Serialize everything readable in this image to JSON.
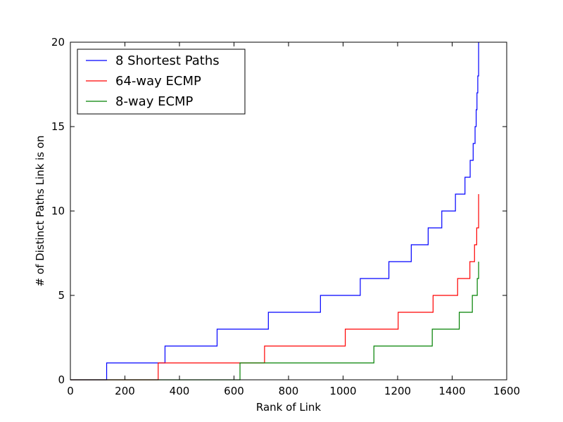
{
  "chart_data": {
    "type": "line",
    "title": "",
    "xlabel": "Rank of Link",
    "ylabel": "# of Distinct Paths Link is on",
    "xlim": [
      0,
      1600
    ],
    "ylim": [
      0,
      20
    ],
    "xticks": [
      0,
      200,
      400,
      600,
      800,
      1000,
      1200,
      1400,
      1600
    ],
    "yticks": [
      0,
      5,
      10,
      15,
      20
    ],
    "grid": false,
    "legend_position": "top-left",
    "series": [
      {
        "name": "8 Shortest Paths",
        "color": "#0000ff",
        "drawstyle": "steps-post",
        "x": [
          0,
          133,
          347,
          538,
          726,
          917,
          1063,
          1168,
          1250,
          1312,
          1362,
          1412,
          1447,
          1466,
          1477,
          1484,
          1488,
          1491,
          1494,
          1497
        ],
        "y": [
          0,
          1,
          2,
          3,
          4,
          5,
          6,
          7,
          8,
          9,
          10,
          11,
          12,
          13,
          14,
          15,
          16,
          17,
          18,
          20
        ]
      },
      {
        "name": "64-way ECMP",
        "color": "#ff0000",
        "drawstyle": "steps-post",
        "x": [
          0,
          322,
          712,
          1008,
          1202,
          1330,
          1420,
          1465,
          1482,
          1490,
          1497
        ],
        "y": [
          0,
          1,
          2,
          3,
          4,
          5,
          6,
          7,
          8,
          9,
          11
        ]
      },
      {
        "name": "8-way ECMP",
        "color": "#008000",
        "drawstyle": "steps-post",
        "x": [
          0,
          622,
          1113,
          1327,
          1426,
          1474,
          1492,
          1497
        ],
        "y": [
          0,
          1,
          2,
          3,
          4,
          5,
          6,
          7
        ]
      }
    ]
  }
}
